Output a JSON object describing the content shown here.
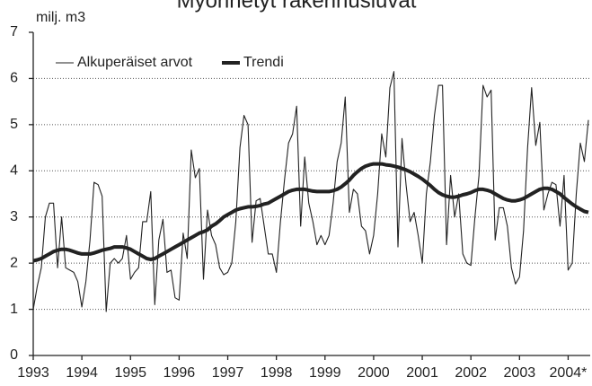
{
  "chart_data": {
    "type": "line",
    "title": "Myönnetyt rakennusluvat",
    "y_label": "milj. m3",
    "categories": [
      "1993",
      null,
      null,
      null,
      null,
      null,
      null,
      null,
      null,
      null,
      null,
      null,
      "1994",
      null,
      null,
      null,
      null,
      null,
      null,
      null,
      null,
      null,
      null,
      null,
      "1995",
      null,
      null,
      null,
      null,
      null,
      null,
      null,
      null,
      null,
      null,
      null,
      "1996",
      null,
      null,
      null,
      null,
      null,
      null,
      null,
      null,
      null,
      null,
      null,
      "1997",
      null,
      null,
      null,
      null,
      null,
      null,
      null,
      null,
      null,
      null,
      null,
      "1998",
      null,
      null,
      null,
      null,
      null,
      null,
      null,
      null,
      null,
      null,
      null,
      "1999",
      null,
      null,
      null,
      null,
      null,
      null,
      null,
      null,
      null,
      null,
      null,
      "2000",
      null,
      null,
      null,
      null,
      null,
      null,
      null,
      null,
      null,
      null,
      null,
      "2001",
      null,
      null,
      null,
      null,
      null,
      null,
      null,
      null,
      null,
      null,
      null,
      "2002",
      null,
      null,
      null,
      null,
      null,
      null,
      null,
      null,
      null,
      null,
      null,
      "2003",
      null,
      null,
      null,
      null,
      null,
      null,
      null,
      null,
      null,
      null,
      null,
      "2004*",
      null,
      null,
      null,
      null,
      null
    ],
    "series": [
      {
        "name": "Alkuperäiset arvot",
        "color": "#222222",
        "width": 1.1,
        "values": [
          1.0,
          1.5,
          1.9,
          3.0,
          3.3,
          3.3,
          1.9,
          3.0,
          1.9,
          1.85,
          1.8,
          1.6,
          1.05,
          1.6,
          2.5,
          3.75,
          3.7,
          3.45,
          0.95,
          2.0,
          2.1,
          2.0,
          2.1,
          2.6,
          1.65,
          1.8,
          1.9,
          2.9,
          2.9,
          3.55,
          1.1,
          2.5,
          2.95,
          1.8,
          1.85,
          1.25,
          1.2,
          2.65,
          2.1,
          4.45,
          3.85,
          4.05,
          1.65,
          3.15,
          2.6,
          2.4,
          1.9,
          1.75,
          1.8,
          2.0,
          2.9,
          4.5,
          5.2,
          5.0,
          2.45,
          3.35,
          3.4,
          2.8,
          2.2,
          2.2,
          1.8,
          2.9,
          3.8,
          4.6,
          4.8,
          5.4,
          2.8,
          4.3,
          3.3,
          2.9,
          2.4,
          2.6,
          2.4,
          2.6,
          3.3,
          4.2,
          4.6,
          5.6,
          3.1,
          3.6,
          3.5,
          2.8,
          2.7,
          2.2,
          2.6,
          3.5,
          4.8,
          4.3,
          5.8,
          6.15,
          2.35,
          4.7,
          3.7,
          2.9,
          3.1,
          2.6,
          2.0,
          3.5,
          4.2,
          5.2,
          5.85,
          5.85,
          2.4,
          3.9,
          3.0,
          3.5,
          2.2,
          2.0,
          1.95,
          3.0,
          3.9,
          5.85,
          5.6,
          5.75,
          2.5,
          3.2,
          3.2,
          2.8,
          1.9,
          1.55,
          1.7,
          2.7,
          4.5,
          5.8,
          4.55,
          5.05,
          3.15,
          3.5,
          3.75,
          3.7,
          2.8,
          3.9,
          1.85,
          2.0,
          3.5,
          4.6,
          4.2,
          5.1
        ]
      },
      {
        "name": "Trendi",
        "color": "#222222",
        "width": 4,
        "values": [
          2.05,
          2.07,
          2.1,
          2.15,
          2.2,
          2.25,
          2.28,
          2.3,
          2.3,
          2.28,
          2.25,
          2.22,
          2.2,
          2.2,
          2.2,
          2.22,
          2.25,
          2.28,
          2.3,
          2.32,
          2.35,
          2.35,
          2.35,
          2.33,
          2.3,
          2.25,
          2.2,
          2.15,
          2.1,
          2.08,
          2.1,
          2.15,
          2.2,
          2.25,
          2.3,
          2.35,
          2.4,
          2.45,
          2.5,
          2.55,
          2.6,
          2.65,
          2.68,
          2.72,
          2.8,
          2.85,
          2.92,
          3.0,
          3.05,
          3.1,
          3.15,
          3.18,
          3.2,
          3.22,
          3.22,
          3.23,
          3.25,
          3.28,
          3.3,
          3.35,
          3.4,
          3.45,
          3.5,
          3.55,
          3.58,
          3.6,
          3.6,
          3.6,
          3.58,
          3.56,
          3.55,
          3.55,
          3.55,
          3.55,
          3.57,
          3.6,
          3.65,
          3.72,
          3.8,
          3.9,
          3.98,
          4.05,
          4.1,
          4.13,
          4.15,
          4.15,
          4.15,
          4.13,
          4.12,
          4.1,
          4.08,
          4.05,
          4.02,
          3.98,
          3.93,
          3.88,
          3.82,
          3.75,
          3.68,
          3.6,
          3.53,
          3.48,
          3.45,
          3.43,
          3.43,
          3.45,
          3.48,
          3.5,
          3.53,
          3.57,
          3.6,
          3.6,
          3.58,
          3.55,
          3.5,
          3.45,
          3.4,
          3.37,
          3.35,
          3.35,
          3.37,
          3.4,
          3.45,
          3.5,
          3.55,
          3.6,
          3.62,
          3.62,
          3.6,
          3.55,
          3.5,
          3.42,
          3.35,
          3.28,
          3.22,
          3.17,
          3.12,
          3.1
        ]
      }
    ],
    "ylim": [
      0,
      7
    ],
    "yticks": [
      0,
      1,
      2,
      3,
      4,
      5,
      6,
      7
    ],
    "grid": true,
    "legend": "top-left"
  }
}
